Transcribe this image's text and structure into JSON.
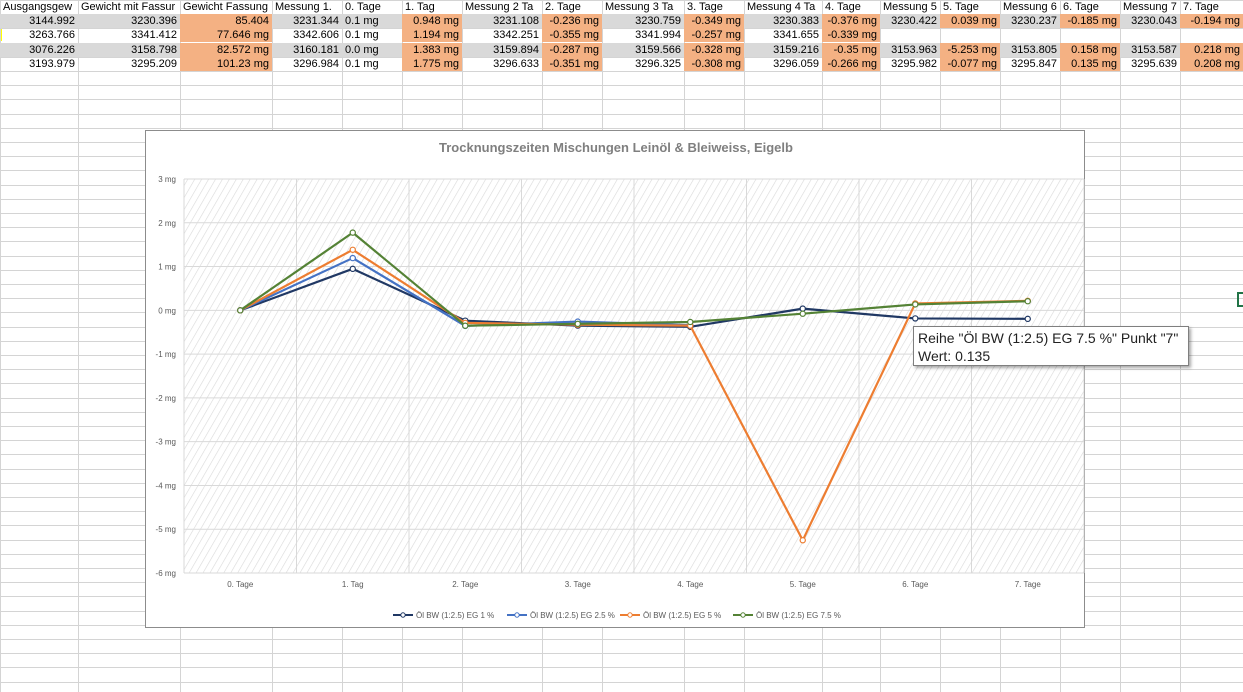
{
  "headers": [
    "Ausgangsgew",
    "Gewicht mit Fassur",
    "Gewicht Fassung",
    "Messung 1.",
    "0. Tage",
    "1. Tag",
    "Messung 2 Ta",
    "2. Tage",
    "Messung 3 Ta",
    "3. Tage",
    "Messung 4 Ta",
    "4. Tage",
    "Messung 5",
    "5. Tage",
    "Messung 6",
    "6. Tage",
    "Messung 7",
    "7. Tage"
  ],
  "rows": [
    [
      "3144.992",
      "3230.396",
      "85.404",
      "3231.344",
      "0.1 mg",
      "0.948 mg",
      "3231.108",
      "-0.236 mg",
      "3230.759",
      "-0.349 mg",
      "3230.383",
      "-0.376 mg",
      "3230.422",
      "0.039 mg",
      "3230.237",
      "-0.185 mg",
      "3230.043",
      "-0.194 mg"
    ],
    [
      "3263.766",
      "3341.412",
      "77.646 mg",
      "3342.606",
      "0.1 mg",
      "1.194 mg",
      "3342.251",
      "-0.355 mg",
      "3341.994",
      "-0.257 mg",
      "3341.655",
      "-0.339 mg",
      "",
      "",
      "",
      "",
      "",
      ""
    ],
    [
      "3076.226",
      "3158.798",
      "82.572 mg",
      "3160.181",
      "0.0 mg",
      "1.383 mg",
      "3159.894",
      "-0.287 mg",
      "3159.566",
      "-0.328 mg",
      "3159.216",
      "-0.35 mg",
      "3153.963",
      "-5.253 mg",
      "3153.805",
      "0.158 mg",
      "3153.587",
      "0.218 mg"
    ],
    [
      "3193.979",
      "3295.209",
      "101.23 mg",
      "3296.984",
      "0.1 mg",
      "1.775 mg",
      "3296.633",
      "-0.351 mg",
      "3296.325",
      "-0.308 mg",
      "3296.059",
      "-0.266 mg",
      "3295.982",
      "-0.077 mg",
      "3295.847",
      "0.135 mg",
      "3295.639",
      "0.208 mg"
    ]
  ],
  "tooltip": {
    "line1": "Reihe \"Öl BW (1:2.5) EG 7.5 %\" Punkt \"7\"",
    "line2": "Wert: 0.135"
  },
  "colors": {
    "series1": "#203864",
    "series2": "#4472c4",
    "series3": "#ed7d31",
    "series4": "#548235",
    "highlight": "#f4b183",
    "rowgray": "#d9d9d9"
  },
  "chart_data": {
    "type": "line",
    "title": "Trocknungszeiten Mischungen Leinöl & Bleiweiss, Eigelb",
    "categories": [
      "0. Tage",
      "1. Tag",
      "2. Tage",
      "3. Tage",
      "4. Tage",
      "5. Tage",
      "6. Tage",
      "7. Tage"
    ],
    "y_ticks": [
      "3 mg",
      "2 mg",
      "1 mg",
      "0 mg",
      "-1 mg",
      "-2 mg",
      "-3 mg",
      "-4 mg",
      "-5 mg",
      "-6 mg"
    ],
    "ylim": [
      -6,
      3
    ],
    "grid": true,
    "legend_position": "bottom",
    "series": [
      {
        "name": "Öl BW (1:2.5) EG 1 %",
        "values": [
          0,
          0.948,
          -0.236,
          -0.349,
          -0.376,
          0.039,
          -0.185,
          -0.194
        ]
      },
      {
        "name": "Öl BW (1:2.5) EG 2.5 %",
        "values": [
          0,
          1.194,
          -0.355,
          -0.257,
          -0.339,
          null,
          null,
          null
        ]
      },
      {
        "name": "Öl BW (1:2.5) EG 5 %",
        "values": [
          0,
          1.383,
          -0.287,
          -0.328,
          -0.35,
          -5.253,
          0.158,
          0.218
        ]
      },
      {
        "name": "Öl BW (1:2.5) EG 7.5 %",
        "values": [
          0,
          1.775,
          -0.351,
          -0.308,
          -0.266,
          -0.077,
          0.135,
          0.208
        ]
      }
    ]
  }
}
